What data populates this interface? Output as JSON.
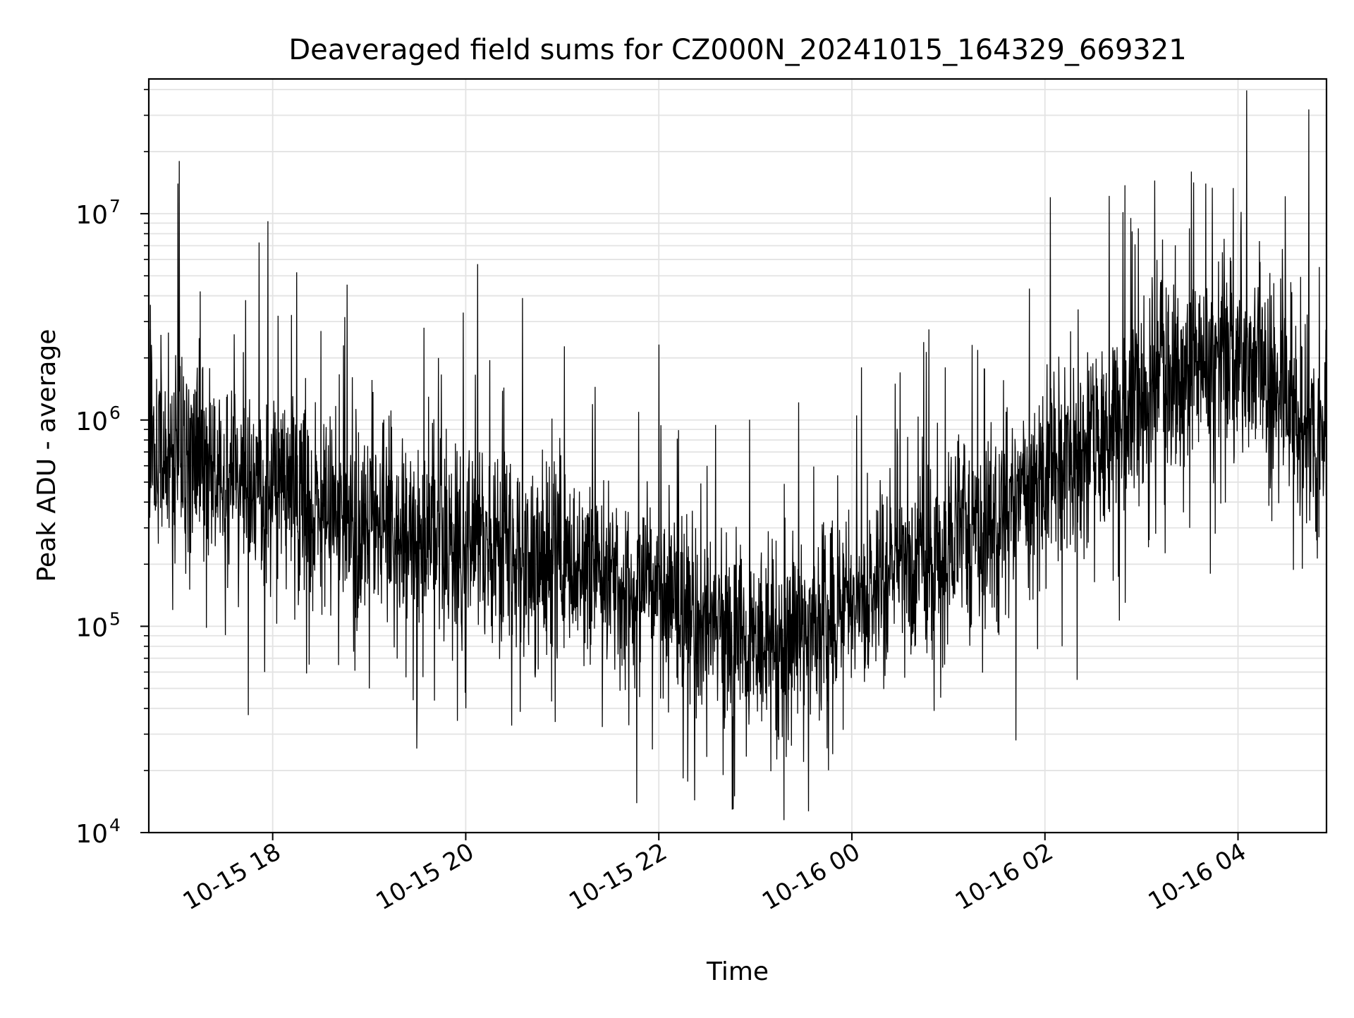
{
  "chart_data": {
    "type": "line",
    "title": "Deaveraged field sums for CZ000N_20241015_164329_669321",
    "xlabel": "Time",
    "ylabel": "Peak ADU - average",
    "y_scale": "log",
    "ylim": [
      10000,
      45000000
    ],
    "xlim": [
      "2024-10-15 16:43",
      "2024-10-16 04:55"
    ],
    "grid": true,
    "line_color": "#000000",
    "x_ticks": [
      {
        "t": "2024-10-15 18:00",
        "label": "10-15 18"
      },
      {
        "t": "2024-10-15 20:00",
        "label": "10-15 20"
      },
      {
        "t": "2024-10-15 22:00",
        "label": "10-15 22"
      },
      {
        "t": "2024-10-16 00:00",
        "label": "10-16 00"
      },
      {
        "t": "2024-10-16 02:00",
        "label": "10-16 02"
      },
      {
        "t": "2024-10-16 04:00",
        "label": "10-16 04"
      }
    ],
    "y_ticks": [
      {
        "value": 10000,
        "base": "10",
        "exp": "4"
      },
      {
        "value": 100000,
        "base": "10",
        "exp": "5"
      },
      {
        "value": 1000000,
        "base": "10",
        "exp": "6"
      },
      {
        "value": 10000000,
        "base": "10",
        "exp": "7"
      }
    ],
    "series": [
      {
        "baseline": [
          [
            "2024-10-15 16:43",
            600000
          ],
          [
            "2024-10-15 17:00",
            750000
          ],
          [
            "2024-10-15 17:30",
            550000
          ],
          [
            "2024-10-15 18:00",
            450000
          ],
          [
            "2024-10-15 18:30",
            380000
          ],
          [
            "2024-10-15 19:00",
            330000
          ],
          [
            "2024-10-15 20:00",
            250000
          ],
          [
            "2024-10-15 21:00",
            200000
          ],
          [
            "2024-10-15 22:00",
            140000
          ],
          [
            "2024-10-15 22:30",
            100000
          ],
          [
            "2024-10-15 23:00",
            85000
          ],
          [
            "2024-10-15 23:30",
            90000
          ],
          [
            "2024-10-16 00:00",
            120000
          ],
          [
            "2024-10-16 00:30",
            170000
          ],
          [
            "2024-10-16 01:00",
            230000
          ],
          [
            "2024-10-16 01:30",
            330000
          ],
          [
            "2024-10-16 02:00",
            500000
          ],
          [
            "2024-10-16 02:30",
            800000
          ],
          [
            "2024-10-16 03:00",
            1300000
          ],
          [
            "2024-10-16 03:30",
            1800000
          ],
          [
            "2024-10-16 04:00",
            2200000
          ],
          [
            "2024-10-16 04:20",
            1700000
          ],
          [
            "2024-10-16 04:40",
            1000000
          ],
          [
            "2024-10-16 04:55",
            750000
          ]
        ],
        "spikes": [
          [
            "2024-10-15 17:01",
            14000000
          ],
          [
            "2024-10-15 17:02",
            18000000
          ],
          [
            "2024-10-15 17:15",
            4200000
          ],
          [
            "2024-10-15 17:36",
            2600000
          ],
          [
            "2024-10-15 17:55",
            4500000
          ],
          [
            "2024-10-15 17:57",
            9200000
          ],
          [
            "2024-10-15 18:15",
            5200000
          ],
          [
            "2024-10-15 18:30",
            2700000
          ],
          [
            "2024-10-15 18:44",
            2300000
          ],
          [
            "2024-10-15 19:34",
            2800000
          ],
          [
            "2024-10-15 19:43",
            2000000
          ],
          [
            "2024-10-15 20:15",
            1950000
          ],
          [
            "2024-10-15 22:30",
            600000
          ],
          [
            "2024-10-16 00:06",
            1800000
          ],
          [
            "2024-10-16 00:30",
            1700000
          ],
          [
            "2024-10-16 00:58",
            1800000
          ],
          [
            "2024-10-16 02:40",
            12200000
          ],
          [
            "2024-10-16 03:13",
            7500000
          ],
          [
            "2024-10-16 03:31",
            16000000
          ],
          [
            "2024-10-16 03:40",
            14000000
          ],
          [
            "2024-10-16 04:02",
            10200000
          ],
          [
            "2024-10-16 04:44",
            32000000
          ]
        ],
        "dips": [
          [
            "2024-10-15 17:55",
            60000
          ],
          [
            "2024-10-15 19:00",
            50000
          ],
          [
            "2024-10-15 20:00",
            40000
          ],
          [
            "2024-10-15 21:45",
            50000
          ],
          [
            "2024-10-15 22:40",
            19000
          ],
          [
            "2024-10-15 22:47",
            15000
          ],
          [
            "2024-10-15 23:30",
            22000
          ],
          [
            "2024-10-15 23:48",
            24000
          ],
          [
            "2024-10-16 01:42",
            28000
          ],
          [
            "2024-10-16 02:20",
            55000
          ],
          [
            "2024-10-16 02:50",
            130000
          ],
          [
            "2024-10-16 03:30",
            300000
          ],
          [
            "2024-10-16 04:40",
            190000
          ]
        ]
      }
    ]
  }
}
